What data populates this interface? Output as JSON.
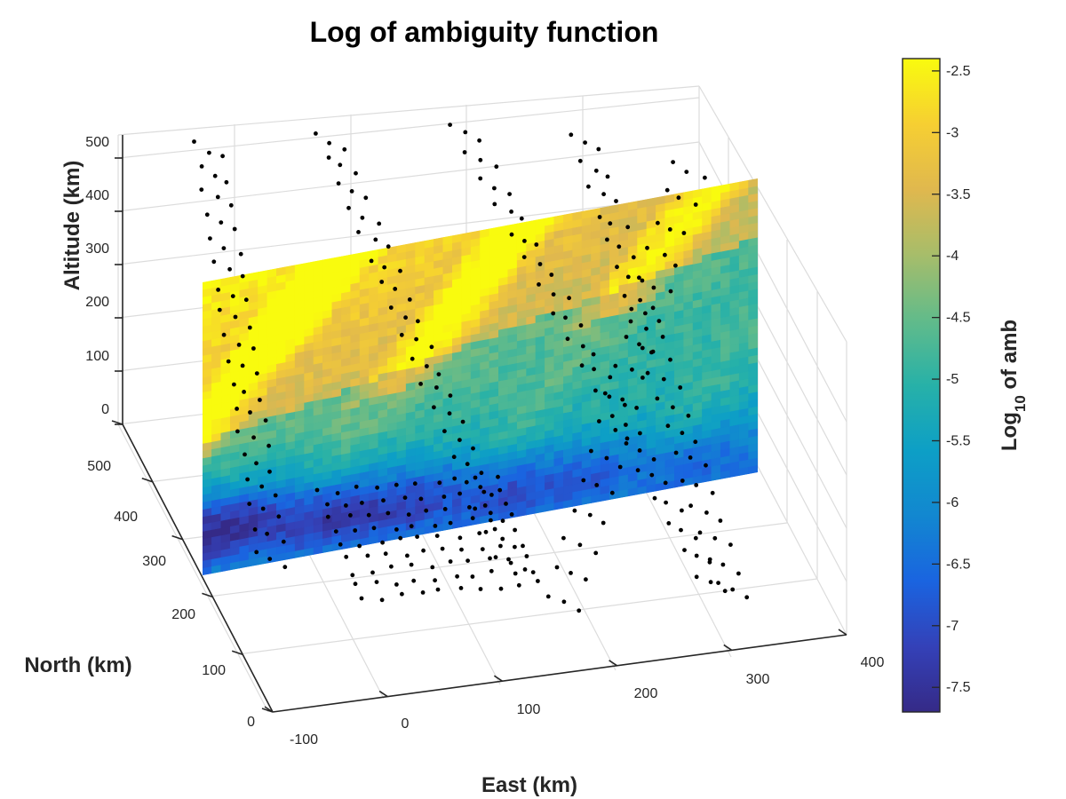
{
  "chart_data": {
    "type": "heatmap",
    "title": "Log of ambiguity function",
    "xlabel": "East (km)",
    "ylabel": "North (km)",
    "zlabel": "Altitude (km)",
    "xlim": [
      -100,
      400
    ],
    "ylim": [
      0,
      500
    ],
    "zlim": [
      0,
      500
    ],
    "x_ticks": [
      "-100",
      "0",
      "100",
      "200",
      "300",
      "400"
    ],
    "y_ticks": [
      "0",
      "100",
      "200",
      "300",
      "400",
      "500"
    ],
    "z_ticks": [
      "0",
      "100",
      "200",
      "300",
      "400",
      "500"
    ],
    "grid": true,
    "colormap": "parula",
    "colorbar": {
      "label_main": "Log",
      "label_sub": "10",
      "label_tail": " of amb",
      "clim": [
        -7.7,
        -2.4
      ],
      "ticks": [
        "-2.5",
        "-3",
        "-3.5",
        "-4",
        "-4.5",
        "-5",
        "-5.5",
        "-6",
        "-6.5",
        "-7",
        "-7.5"
      ],
      "tick_values": [
        -2.5,
        -3,
        -3.5,
        -4,
        -4.5,
        -5,
        -5.5,
        -6,
        -6.5,
        -7,
        -7.5
      ]
    },
    "slice_plane": {
      "orientation": "vertical",
      "east_range": [
        -100,
        400
      ],
      "north": 200,
      "altitude_range": [
        0,
        500
      ],
      "value_range": [
        -7.7,
        -2.5
      ]
    },
    "scatter_series": [
      {
        "east_start": -100,
        "east_step": 120,
        "north_start": 0,
        "north_step": 100,
        "alt_top": 480,
        "alt_step": -45
      }
    ]
  },
  "colors": {
    "parula_low": "#352a87",
    "parula_mid": "#20b4aa",
    "parula_high": "#f9fb0e",
    "points": "#000000"
  }
}
